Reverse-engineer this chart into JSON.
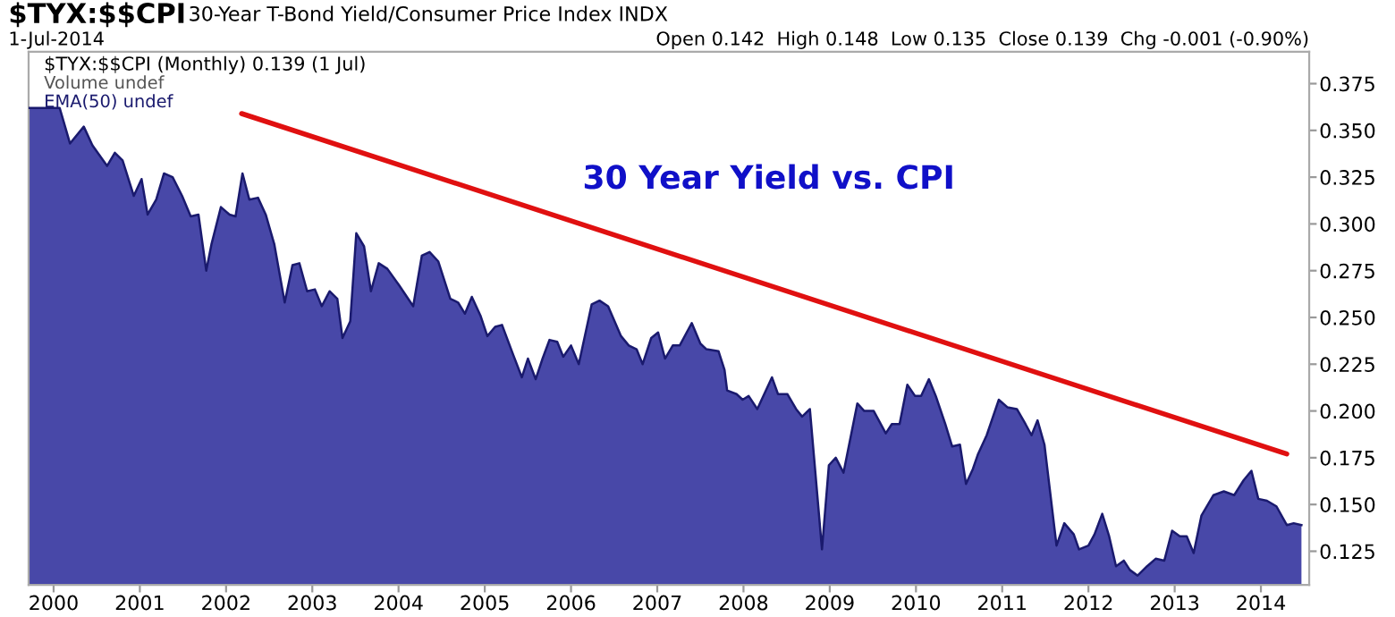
{
  "chart_data": {
    "type": "area",
    "title": "$TYX:$$CPI",
    "subtitle": "30-Year T-Bond Yield/Consumer Price Index INDX",
    "annotations": [
      "1-Jul-2014",
      "Open 0.142  High 0.148  Low 0.135  Close 0.139  Chg -0.001 (-0.90%)",
      "$TYX:$$CPI (Monthly) 0.139 (1 Jul)",
      "Volume undef",
      "EMA(50) undef",
      "30 Year Yield vs. CPI"
    ],
    "xlim": [
      1999.71,
      2014.56
    ],
    "ylim": [
      0.107,
      0.392
    ],
    "xticks": [
      2000,
      2001,
      2002,
      2003,
      2004,
      2005,
      2006,
      2007,
      2008,
      2009,
      2010,
      2011,
      2012,
      2013,
      2014
    ],
    "yticks": [
      0.125,
      {
        "value": 0.15,
        "label": "0.150"
      },
      0.175,
      {
        "value": 0.2,
        "label": "0.200"
      },
      0.225,
      {
        "value": 0.25,
        "label": "0.250"
      },
      0.275,
      {
        "value": 0.3,
        "label": "0.300"
      },
      0.325,
      {
        "value": 0.35,
        "label": "0.350"
      },
      0.375
    ],
    "grid": false,
    "series": [
      {
        "color": "#4848a8",
        "x": [
          1999.71,
          2000.07,
          2000.19,
          2000.35,
          2000.45,
          2000.62,
          2000.71,
          2000.8,
          2000.93,
          2001.02,
          2001.09,
          2001.19,
          2001.28,
          2001.38,
          2001.49,
          2001.59,
          2001.68,
          2001.77,
          2001.83,
          2001.94,
          2002.04,
          2002.11,
          2002.19,
          2002.27,
          2002.37,
          2002.46,
          2002.56,
          2002.68,
          2002.77,
          2002.85,
          2002.94,
          2003.03,
          2003.11,
          2003.2,
          2003.29,
          2003.35,
          2003.44,
          2003.51,
          2003.6,
          2003.68,
          2003.77,
          2003.87,
          2004.01,
          2004.17,
          2004.27,
          2004.36,
          2004.46,
          2004.6,
          2004.69,
          2004.77,
          2004.85,
          2004.95,
          2005.03,
          2005.12,
          2005.2,
          2005.33,
          2005.43,
          2005.5,
          2005.59,
          2005.67,
          2005.75,
          2005.84,
          2005.91,
          2006.0,
          2006.09,
          2006.24,
          2006.33,
          2006.43,
          2006.58,
          2006.67,
          2006.76,
          2006.83,
          2006.93,
          2007.01,
          2007.09,
          2007.18,
          2007.26,
          2007.4,
          2007.5,
          2007.57,
          2007.71,
          2007.78,
          2007.81,
          2007.92,
          2007.99,
          2008.06,
          2008.16,
          2008.33,
          2008.4,
          2008.51,
          2008.61,
          2008.68,
          2008.77,
          2008.91,
          2008.99,
          2009.07,
          2009.16,
          2009.32,
          2009.4,
          2009.51,
          2009.65,
          2009.72,
          2009.81,
          2009.9,
          2009.99,
          2010.06,
          2010.15,
          2010.23,
          2010.34,
          2010.42,
          2010.51,
          2010.58,
          2010.66,
          2010.72,
          2010.82,
          2010.96,
          2011.06,
          2011.17,
          2011.27,
          2011.34,
          2011.41,
          2011.49,
          2011.63,
          2011.72,
          2011.83,
          2011.89,
          2012.0,
          2012.07,
          2012.16,
          2012.24,
          2012.32,
          2012.41,
          2012.48,
          2012.57,
          2012.68,
          2012.78,
          2012.88,
          2012.97,
          2013.06,
          2013.14,
          2013.22,
          2013.31,
          2013.45,
          2013.57,
          2013.69,
          2013.8,
          2013.89,
          2013.97,
          2014.07,
          2014.18,
          2014.3,
          2014.38,
          2014.47
        ],
        "values": [
          0.362,
          0.362,
          0.343,
          0.352,
          0.342,
          0.331,
          0.338,
          0.334,
          0.315,
          0.324,
          0.305,
          0.313,
          0.327,
          0.325,
          0.315,
          0.304,
          0.305,
          0.275,
          0.289,
          0.309,
          0.305,
          0.304,
          0.327,
          0.313,
          0.314,
          0.305,
          0.289,
          0.258,
          0.278,
          0.279,
          0.264,
          0.265,
          0.256,
          0.264,
          0.26,
          0.239,
          0.248,
          0.295,
          0.288,
          0.264,
          0.279,
          0.276,
          0.267,
          0.256,
          0.283,
          0.285,
          0.28,
          0.26,
          0.258,
          0.252,
          0.261,
          0.251,
          0.24,
          0.245,
          0.246,
          0.23,
          0.218,
          0.228,
          0.217,
          0.228,
          0.238,
          0.237,
          0.229,
          0.235,
          0.225,
          0.257,
          0.259,
          0.256,
          0.24,
          0.235,
          0.233,
          0.225,
          0.239,
          0.242,
          0.228,
          0.235,
          0.235,
          0.247,
          0.236,
          0.233,
          0.232,
          0.222,
          0.211,
          0.209,
          0.206,
          0.208,
          0.201,
          0.218,
          0.209,
          0.209,
          0.201,
          0.197,
          0.201,
          0.126,
          0.171,
          0.175,
          0.167,
          0.204,
          0.2,
          0.2,
          0.188,
          0.193,
          0.193,
          0.214,
          0.208,
          0.208,
          0.217,
          0.208,
          0.193,
          0.181,
          0.182,
          0.161,
          0.169,
          0.177,
          0.187,
          0.206,
          0.202,
          0.201,
          0.193,
          0.187,
          0.195,
          0.182,
          0.128,
          0.14,
          0.134,
          0.126,
          0.128,
          0.134,
          0.145,
          0.133,
          0.117,
          0.12,
          0.115,
          0.112,
          0.117,
          0.121,
          0.12,
          0.136,
          0.133,
          0.133,
          0.124,
          0.144,
          0.155,
          0.157,
          0.155,
          0.163,
          0.168,
          0.153,
          0.152,
          0.149,
          0.139,
          0.14,
          0.139
        ]
      },
      {
        "type": "line",
        "color": "#e01010",
        "x": [
          2002.18,
          2014.3
        ],
        "values": [
          0.359,
          0.177
        ]
      }
    ]
  }
}
